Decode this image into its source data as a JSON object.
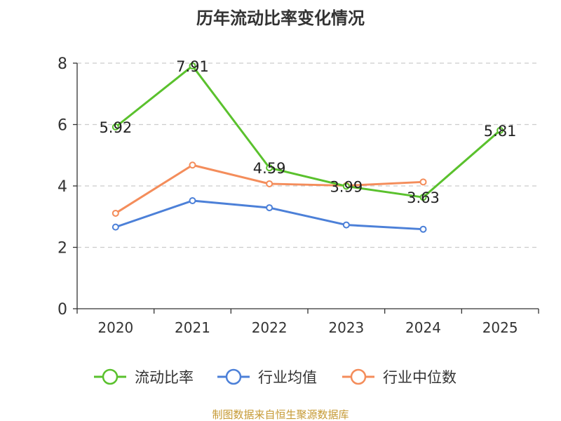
{
  "chart_data": {
    "type": "line",
    "title": "历年流动比率变化情况",
    "categories": [
      "2020",
      "2021",
      "2022",
      "2023",
      "2024",
      "2025"
    ],
    "ylim": [
      0,
      8
    ],
    "yticks": [
      "0",
      "2",
      "4",
      "6",
      "8"
    ],
    "grid": true,
    "legend_position": "bottom",
    "series": [
      {
        "name": "流动比率",
        "color": "#5ac12d",
        "values": [
          5.92,
          7.91,
          4.59,
          3.99,
          3.63,
          5.81
        ],
        "labels": [
          "5.92",
          "7.91",
          "4.59",
          "3.99",
          "3.63",
          "5.81"
        ]
      },
      {
        "name": "行业均值",
        "color": "#4c80d8",
        "values": [
          2.66,
          3.52,
          3.29,
          2.73,
          2.59,
          null
        ]
      },
      {
        "name": "行业中位数",
        "color": "#f48d5b",
        "values": [
          3.11,
          4.68,
          4.07,
          4.01,
          4.13,
          null
        ]
      }
    ],
    "source": "制图数据来自恒生聚源数据库"
  }
}
